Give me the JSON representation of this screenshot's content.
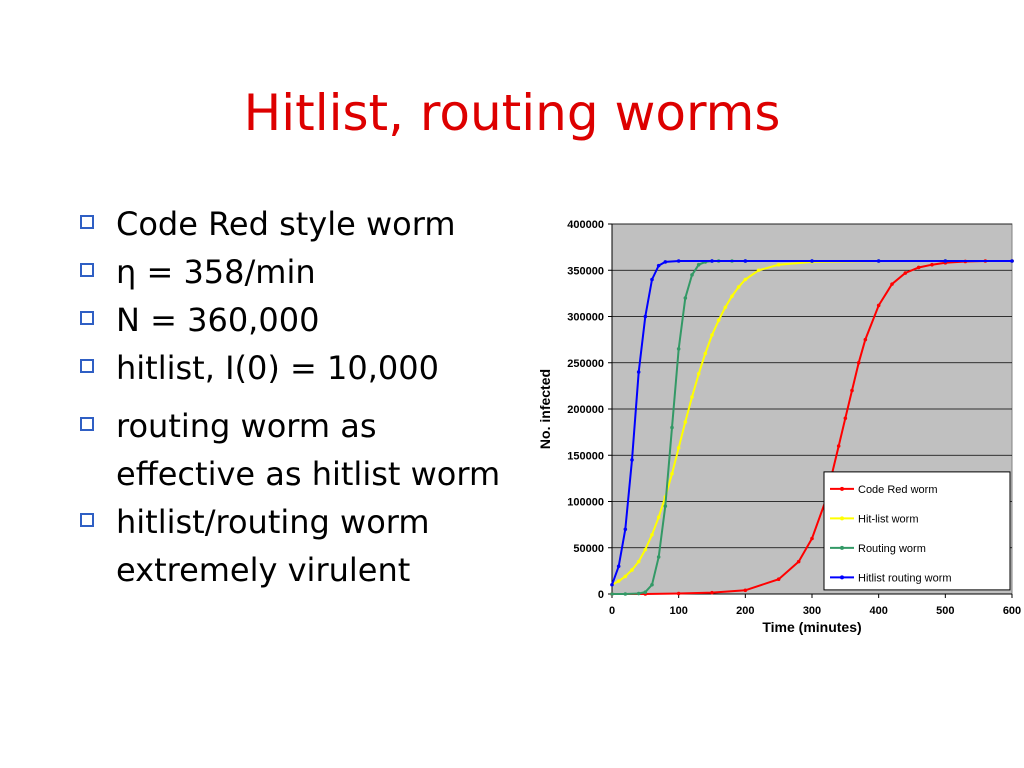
{
  "slide": {
    "title": "Hitlist, routing worms",
    "bullets": [
      "Code Red style worm",
      "η = 358/min",
      "N = 360,000",
      "hitlist, I(0) = 10,000",
      "routing worm as effective as hitlist worm",
      "hitlist/routing worm extremely virulent"
    ],
    "bullet_marker_color": "#2f5fc4"
  },
  "chart_data": {
    "type": "line",
    "xlabel": "Time (minutes)",
    "ylabel": "No. infected",
    "xlim": [
      0,
      600
    ],
    "ylim": [
      0,
      400000
    ],
    "xticks": [
      0,
      100,
      200,
      300,
      400,
      500,
      600
    ],
    "yticks": [
      0,
      50000,
      100000,
      150000,
      200000,
      250000,
      300000,
      350000,
      400000
    ],
    "grid": true,
    "background": "#c0c0c0",
    "legend_position": "bottom-right",
    "series": [
      {
        "name": "Code Red worm",
        "color": "#ff0000",
        "x": [
          0,
          50,
          100,
          150,
          200,
          250,
          280,
          300,
          320,
          340,
          350,
          360,
          370,
          380,
          400,
          420,
          440,
          460,
          480,
          500,
          530,
          560,
          600
        ],
        "y": [
          0,
          0,
          500,
          1500,
          4000,
          16000,
          35000,
          60000,
          100000,
          160000,
          190000,
          220000,
          250000,
          275000,
          312000,
          335000,
          347000,
          353000,
          356000,
          358000,
          359500,
          360000,
          360000
        ]
      },
      {
        "name": "Hit-list worm",
        "color": "#ffff00",
        "x": [
          0,
          10,
          20,
          30,
          40,
          50,
          60,
          70,
          80,
          90,
          100,
          110,
          120,
          130,
          140,
          150,
          160,
          170,
          180,
          190,
          200,
          220,
          250,
          300,
          400,
          500,
          600
        ],
        "y": [
          10000,
          14000,
          19000,
          26000,
          35000,
          48000,
          64000,
          83000,
          105000,
          130000,
          158000,
          186000,
          213000,
          238000,
          260000,
          280000,
          296000,
          310000,
          322000,
          332000,
          340000,
          350000,
          356000,
          359000,
          360000,
          360000,
          360000
        ]
      },
      {
        "name": "Routing worm",
        "color": "#339966",
        "x": [
          0,
          20,
          40,
          50,
          60,
          70,
          80,
          90,
          100,
          110,
          120,
          130,
          140,
          150,
          160,
          180,
          200,
          300,
          400,
          500,
          600
        ],
        "y": [
          0,
          0,
          500,
          2000,
          10000,
          40000,
          95000,
          180000,
          265000,
          320000,
          345000,
          356000,
          359000,
          360000,
          360000,
          360000,
          360000,
          360000,
          360000,
          360000,
          360000
        ]
      },
      {
        "name": "Hitlist routing worm",
        "color": "#0000ff",
        "x": [
          0,
          10,
          20,
          30,
          40,
          50,
          60,
          70,
          80,
          100,
          150,
          200,
          300,
          400,
          500,
          600
        ],
        "y": [
          10000,
          30000,
          70000,
          145000,
          240000,
          300000,
          340000,
          355000,
          359000,
          360000,
          360000,
          360000,
          360000,
          360000,
          360000,
          360000
        ]
      }
    ]
  }
}
